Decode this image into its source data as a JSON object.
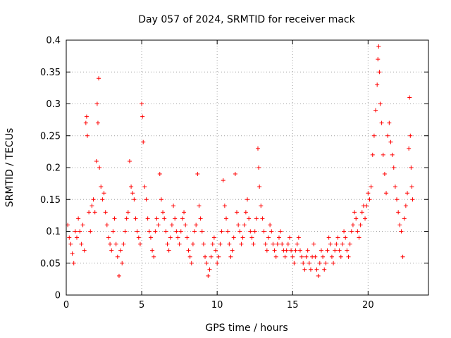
{
  "chart_data": {
    "type": "scatter",
    "title": "Day 057 of 2024, SRMTID for receiver mack",
    "xlabel": "GPS time / hours",
    "ylabel": "SRMTID / TECUs",
    "xlim": [
      0,
      24
    ],
    "ylim": [
      0,
      0.4
    ],
    "xticks": [
      0,
      5,
      10,
      15,
      20
    ],
    "xtick_labels": [
      "0",
      "5",
      "10",
      "15",
      "20"
    ],
    "yticks": [
      0,
      0.05,
      0.1,
      0.15,
      0.2,
      0.25,
      0.3,
      0.35,
      0.4
    ],
    "ytick_labels": [
      "0",
      "0.05",
      "0.1",
      "0.15",
      "0.2",
      "0.25",
      "0.3",
      "0.35",
      "0.4"
    ],
    "grid": true,
    "marker": "+",
    "series_color": "#ff0000",
    "points": [
      [
        0.1,
        0.11
      ],
      [
        0.2,
        0.09
      ],
      [
        0.3,
        0.08
      ],
      [
        0.4,
        0.065
      ],
      [
        0.5,
        0.05
      ],
      [
        0.6,
        0.1
      ],
      [
        0.7,
        0.09
      ],
      [
        0.8,
        0.12
      ],
      [
        0.9,
        0.1
      ],
      [
        1.0,
        0.08
      ],
      [
        1.1,
        0.11
      ],
      [
        1.2,
        0.07
      ],
      [
        1.3,
        0.27
      ],
      [
        1.35,
        0.28
      ],
      [
        1.4,
        0.25
      ],
      [
        1.5,
        0.13
      ],
      [
        1.6,
        0.1
      ],
      [
        1.7,
        0.14
      ],
      [
        1.8,
        0.15
      ],
      [
        1.9,
        0.13
      ],
      [
        2.0,
        0.21
      ],
      [
        2.05,
        0.3
      ],
      [
        2.1,
        0.27
      ],
      [
        2.15,
        0.34
      ],
      [
        2.2,
        0.2
      ],
      [
        2.3,
        0.17
      ],
      [
        2.4,
        0.15
      ],
      [
        2.5,
        0.16
      ],
      [
        2.6,
        0.13
      ],
      [
        2.7,
        0.11
      ],
      [
        2.8,
        0.09
      ],
      [
        2.9,
        0.08
      ],
      [
        3.0,
        0.07
      ],
      [
        3.1,
        0.1
      ],
      [
        3.2,
        0.12
      ],
      [
        3.3,
        0.08
      ],
      [
        3.4,
        0.06
      ],
      [
        3.5,
        0.03
      ],
      [
        3.6,
        0.07
      ],
      [
        3.7,
        0.05
      ],
      [
        3.8,
        0.08
      ],
      [
        3.9,
        0.1
      ],
      [
        4.0,
        0.12
      ],
      [
        4.1,
        0.13
      ],
      [
        4.2,
        0.21
      ],
      [
        4.3,
        0.17
      ],
      [
        4.4,
        0.16
      ],
      [
        4.5,
        0.15
      ],
      [
        4.6,
        0.12
      ],
      [
        4.7,
        0.1
      ],
      [
        4.8,
        0.09
      ],
      [
        4.9,
        0.08
      ],
      [
        5.0,
        0.3
      ],
      [
        5.05,
        0.28
      ],
      [
        5.1,
        0.24
      ],
      [
        5.2,
        0.17
      ],
      [
        5.3,
        0.15
      ],
      [
        5.4,
        0.12
      ],
      [
        5.5,
        0.1
      ],
      [
        5.6,
        0.09
      ],
      [
        5.7,
        0.07
      ],
      [
        5.8,
        0.06
      ],
      [
        5.9,
        0.1
      ],
      [
        6.0,
        0.12
      ],
      [
        6.1,
        0.11
      ],
      [
        6.2,
        0.19
      ],
      [
        6.3,
        0.15
      ],
      [
        6.4,
        0.13
      ],
      [
        6.5,
        0.12
      ],
      [
        6.6,
        0.1
      ],
      [
        6.7,
        0.08
      ],
      [
        6.8,
        0.07
      ],
      [
        6.9,
        0.09
      ],
      [
        7.0,
        0.11
      ],
      [
        7.1,
        0.14
      ],
      [
        7.2,
        0.12
      ],
      [
        7.3,
        0.1
      ],
      [
        7.4,
        0.09
      ],
      [
        7.5,
        0.08
      ],
      [
        7.6,
        0.1
      ],
      [
        7.7,
        0.12
      ],
      [
        7.8,
        0.13
      ],
      [
        7.9,
        0.11
      ],
      [
        8.0,
        0.09
      ],
      [
        8.1,
        0.07
      ],
      [
        8.2,
        0.06
      ],
      [
        8.3,
        0.05
      ],
      [
        8.4,
        0.08
      ],
      [
        8.5,
        0.1
      ],
      [
        8.6,
        0.11
      ],
      [
        8.7,
        0.19
      ],
      [
        8.8,
        0.14
      ],
      [
        8.9,
        0.12
      ],
      [
        9.0,
        0.1
      ],
      [
        9.1,
        0.08
      ],
      [
        9.2,
        0.06
      ],
      [
        9.3,
        0.05
      ],
      [
        9.4,
        0.03
      ],
      [
        9.5,
        0.04
      ],
      [
        9.6,
        0.06
      ],
      [
        9.7,
        0.08
      ],
      [
        9.8,
        0.09
      ],
      [
        9.9,
        0.07
      ],
      [
        10.0,
        0.05
      ],
      [
        10.1,
        0.06
      ],
      [
        10.2,
        0.08
      ],
      [
        10.3,
        0.1
      ],
      [
        10.4,
        0.18
      ],
      [
        10.5,
        0.14
      ],
      [
        10.6,
        0.12
      ],
      [
        10.7,
        0.1
      ],
      [
        10.8,
        0.08
      ],
      [
        10.9,
        0.06
      ],
      [
        11.0,
        0.07
      ],
      [
        11.1,
        0.09
      ],
      [
        11.2,
        0.19
      ],
      [
        11.3,
        0.13
      ],
      [
        11.4,
        0.11
      ],
      [
        11.5,
        0.1
      ],
      [
        11.6,
        0.08
      ],
      [
        11.7,
        0.09
      ],
      [
        11.8,
        0.11
      ],
      [
        11.9,
        0.13
      ],
      [
        12.0,
        0.15
      ],
      [
        12.1,
        0.12
      ],
      [
        12.2,
        0.1
      ],
      [
        12.3,
        0.09
      ],
      [
        12.4,
        0.08
      ],
      [
        12.5,
        0.1
      ],
      [
        12.6,
        0.12
      ],
      [
        12.7,
        0.23
      ],
      [
        12.75,
        0.2
      ],
      [
        12.8,
        0.17
      ],
      [
        12.9,
        0.14
      ],
      [
        13.0,
        0.12
      ],
      [
        13.1,
        0.1
      ],
      [
        13.2,
        0.08
      ],
      [
        13.3,
        0.07
      ],
      [
        13.4,
        0.09
      ],
      [
        13.5,
        0.11
      ],
      [
        13.6,
        0.1
      ],
      [
        13.7,
        0.08
      ],
      [
        13.8,
        0.07
      ],
      [
        13.9,
        0.06
      ],
      [
        14.0,
        0.08
      ],
      [
        14.1,
        0.09
      ],
      [
        14.2,
        0.1
      ],
      [
        14.3,
        0.08
      ],
      [
        14.4,
        0.07
      ],
      [
        14.5,
        0.06
      ],
      [
        14.6,
        0.07
      ],
      [
        14.7,
        0.08
      ],
      [
        14.8,
        0.09
      ],
      [
        14.9,
        0.07
      ],
      [
        15.0,
        0.06
      ],
      [
        15.1,
        0.05
      ],
      [
        15.2,
        0.07
      ],
      [
        15.3,
        0.08
      ],
      [
        15.4,
        0.09
      ],
      [
        15.5,
        0.07
      ],
      [
        15.6,
        0.06
      ],
      [
        15.7,
        0.05
      ],
      [
        15.8,
        0.04
      ],
      [
        15.9,
        0.06
      ],
      [
        16.0,
        0.07
      ],
      [
        16.1,
        0.05
      ],
      [
        16.2,
        0.04
      ],
      [
        16.3,
        0.06
      ],
      [
        16.4,
        0.08
      ],
      [
        16.5,
        0.06
      ],
      [
        16.6,
        0.04
      ],
      [
        16.7,
        0.03
      ],
      [
        16.8,
        0.05
      ],
      [
        16.9,
        0.07
      ],
      [
        17.0,
        0.06
      ],
      [
        17.1,
        0.04
      ],
      [
        17.2,
        0.05
      ],
      [
        17.3,
        0.07
      ],
      [
        17.4,
        0.09
      ],
      [
        17.5,
        0.08
      ],
      [
        17.6,
        0.06
      ],
      [
        17.7,
        0.05
      ],
      [
        17.8,
        0.07
      ],
      [
        17.9,
        0.08
      ],
      [
        18.0,
        0.09
      ],
      [
        18.1,
        0.07
      ],
      [
        18.2,
        0.06
      ],
      [
        18.3,
        0.08
      ],
      [
        18.4,
        0.1
      ],
      [
        18.5,
        0.09
      ],
      [
        18.6,
        0.07
      ],
      [
        18.7,
        0.06
      ],
      [
        18.8,
        0.08
      ],
      [
        18.9,
        0.1
      ],
      [
        19.0,
        0.11
      ],
      [
        19.1,
        0.13
      ],
      [
        19.2,
        0.12
      ],
      [
        19.3,
        0.1
      ],
      [
        19.4,
        0.09
      ],
      [
        19.5,
        0.11
      ],
      [
        19.6,
        0.13
      ],
      [
        19.7,
        0.14
      ],
      [
        19.8,
        0.12
      ],
      [
        19.9,
        0.14
      ],
      [
        20.0,
        0.16
      ],
      [
        20.1,
        0.15
      ],
      [
        20.2,
        0.17
      ],
      [
        20.3,
        0.22
      ],
      [
        20.4,
        0.25
      ],
      [
        20.5,
        0.29
      ],
      [
        20.6,
        0.33
      ],
      [
        20.65,
        0.37
      ],
      [
        20.7,
        0.39
      ],
      [
        20.75,
        0.35
      ],
      [
        20.8,
        0.3
      ],
      [
        20.9,
        0.27
      ],
      [
        21.0,
        0.22
      ],
      [
        21.1,
        0.19
      ],
      [
        21.2,
        0.16
      ],
      [
        21.3,
        0.25
      ],
      [
        21.4,
        0.27
      ],
      [
        21.5,
        0.24
      ],
      [
        21.6,
        0.22
      ],
      [
        21.7,
        0.2
      ],
      [
        21.8,
        0.17
      ],
      [
        21.9,
        0.15
      ],
      [
        22.0,
        0.13
      ],
      [
        22.1,
        0.11
      ],
      [
        22.2,
        0.1
      ],
      [
        22.3,
        0.06
      ],
      [
        22.4,
        0.12
      ],
      [
        22.5,
        0.14
      ],
      [
        22.6,
        0.16
      ],
      [
        22.7,
        0.23
      ],
      [
        22.75,
        0.31
      ],
      [
        22.8,
        0.25
      ],
      [
        22.85,
        0.2
      ],
      [
        22.9,
        0.17
      ],
      [
        22.95,
        0.15
      ]
    ]
  }
}
